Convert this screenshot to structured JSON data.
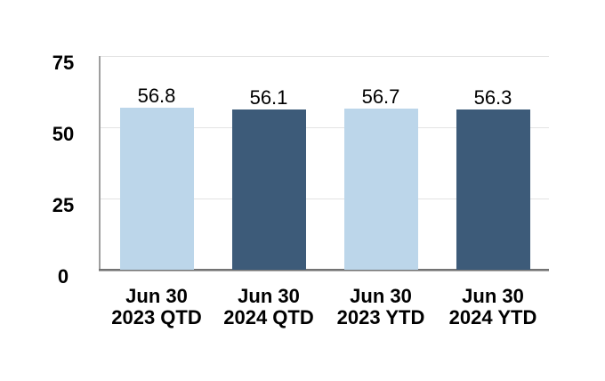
{
  "chart_data": {
    "type": "bar",
    "title": "",
    "xlabel": "",
    "ylabel": "",
    "categories": [
      [
        "Jun 30",
        "2023 QTD"
      ],
      [
        "Jun 30",
        "2024 QTD"
      ],
      [
        "Jun 30",
        "2023 YTD"
      ],
      [
        "Jun 30",
        "2024 YTD"
      ]
    ],
    "values": [
      56.8,
      56.1,
      56.7,
      56.3
    ],
    "value_labels": [
      "56.8",
      "56.1",
      "56.7",
      "56.3"
    ],
    "bar_colors": [
      "#bcd6ea",
      "#3d5b79",
      "#bcd6ea",
      "#3d5b79"
    ],
    "yticks": [
      0,
      25,
      50,
      75
    ],
    "ytick_labels": [
      "0",
      "25",
      "50",
      "75"
    ],
    "ylim": [
      0,
      75
    ],
    "grid": true,
    "legend": false,
    "colors": {
      "light_series": "#bcd6ea",
      "dark_series": "#3d5b79",
      "gridline": "#e3e3e3",
      "y_axis_line": "#9e9e9e",
      "x_axis_line": "#737373",
      "text": "#000000",
      "background": "#ffffff"
    }
  }
}
